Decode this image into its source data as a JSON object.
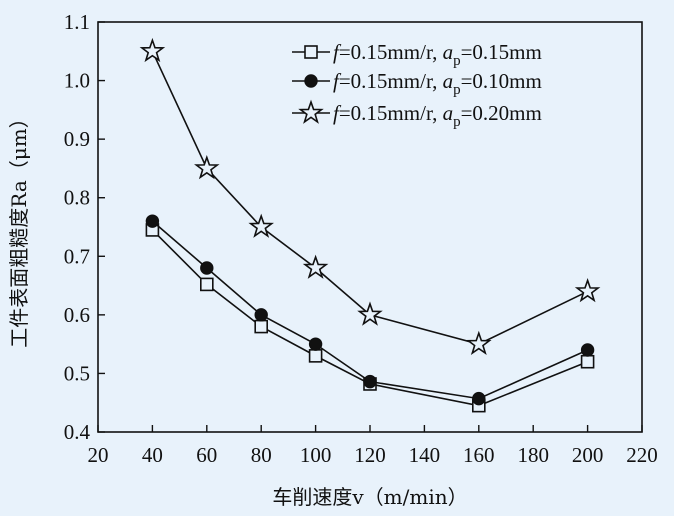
{
  "chart_data": {
    "type": "line",
    "title": "",
    "xlabel": "车削速度v（m/min）",
    "ylabel": "工件表面粗糙度Ra（μm）",
    "xlim": [
      20,
      220
    ],
    "ylim": [
      0.4,
      1.1
    ],
    "xticks": [
      "20",
      "40",
      "60",
      "80",
      "100",
      "120",
      "140",
      "160",
      "180",
      "200",
      "220"
    ],
    "yticks": [
      "0.4",
      "0.5",
      "0.6",
      "0.7",
      "0.8",
      "0.9",
      "1.0",
      "1.1"
    ],
    "grid": false,
    "legend_position": "top-right",
    "x": [
      40,
      60,
      80,
      100,
      120,
      160,
      200
    ],
    "series": [
      {
        "name": "f=0.15mm/r, ap=0.15mm",
        "legend_parts": {
          "f": "f",
          "feed": "=0.15mm/r, ",
          "a": "a",
          "sub": "p",
          "depth": "=0.15mm"
        },
        "marker": "open-square",
        "values": [
          0.745,
          0.652,
          0.58,
          0.53,
          0.482,
          0.445,
          0.52
        ]
      },
      {
        "name": "f=0.15mm/r, ap=0.10mm",
        "legend_parts": {
          "f": "f",
          "feed": "=0.15mm/r, ",
          "a": "a",
          "sub": "p",
          "depth": "=0.10mm"
        },
        "marker": "filled-circle",
        "values": [
          0.76,
          0.68,
          0.6,
          0.55,
          0.486,
          0.457,
          0.54
        ]
      },
      {
        "name": "f=0.15mm/r, ap=0.20mm",
        "legend_parts": {
          "f": "f",
          "feed": "=0.15mm/r, ",
          "a": "a",
          "sub": "p",
          "depth": "=0.20mm"
        },
        "marker": "open-star",
        "values": [
          1.05,
          0.85,
          0.75,
          0.68,
          0.6,
          0.55,
          0.64
        ]
      }
    ]
  },
  "colors": {
    "background": "#e8f2fb",
    "ink": "#111111"
  }
}
